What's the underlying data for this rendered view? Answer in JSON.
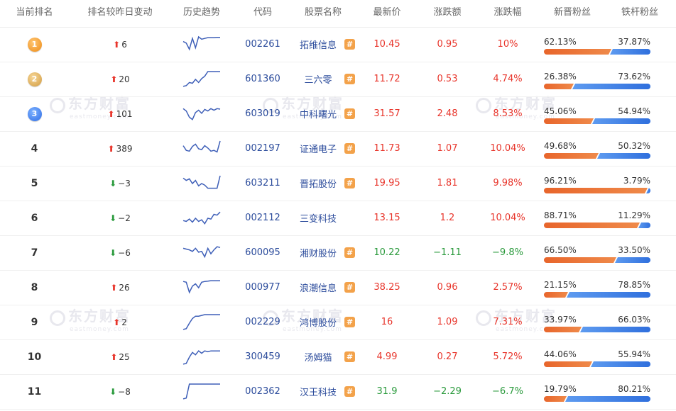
{
  "watermark": {
    "text": "东方财富",
    "sub": "eastmoney.com"
  },
  "header": {
    "rank": "当前排名",
    "rank_change": "排名较昨日变动",
    "trend": "历史趋势",
    "code": "代码",
    "name": "股票名称",
    "price": "最新价",
    "change_amt": "涨跌额",
    "change_pct": "涨跌幅",
    "new_fans": "新晋粉丝",
    "loyal_fans": "铁杆粉丝"
  },
  "colors": {
    "up": "#e8352b",
    "down": "#2a9a3c",
    "link": "#2c4c9c",
    "new_fans_bar": "#e8652b",
    "loyal_fans_bar": "#2f6fdd",
    "hash_icon": "#f3a24a"
  },
  "icons": {
    "rank_up": "arrow-up-icon",
    "rank_down": "arrow-down-icon",
    "stock_bar": "hash-icon"
  },
  "rows": [
    {
      "rank": "1",
      "medal": 1,
      "dir": "up",
      "rank_change": "6",
      "code": "002261",
      "name": "拓维信息",
      "price": "10.45",
      "change_amt": "0.95",
      "change_pct": "10%",
      "tone": "red",
      "new_fans": "62.13%",
      "loyal_fans": "37.87%",
      "new_ratio": 0.6213,
      "hash": true,
      "trend": [
        0.7,
        0.6,
        0.2,
        0.9,
        0.3,
        1.0,
        0.85,
        0.9,
        0.95,
        0.95,
        0.95,
        0.97,
        0.97
      ]
    },
    {
      "rank": "2",
      "medal": 2,
      "dir": "up",
      "rank_change": "20",
      "code": "601360",
      "name": "三六零",
      "price": "11.72",
      "change_amt": "0.53",
      "change_pct": "4.74%",
      "tone": "red",
      "new_fans": "26.38%",
      "loyal_fans": "73.62%",
      "new_ratio": 0.2638,
      "hash": true,
      "trend": [
        0.05,
        0.1,
        0.3,
        0.25,
        0.5,
        0.3,
        0.55,
        0.7,
        1.0,
        1.0,
        1.0,
        1.0,
        1.0
      ]
    },
    {
      "rank": "3",
      "medal": 3,
      "dir": "up",
      "rank_change": "101",
      "code": "603019",
      "name": "中科曙光",
      "price": "31.57",
      "change_amt": "2.48",
      "change_pct": "8.53%",
      "tone": "red",
      "new_fans": "45.06%",
      "loyal_fans": "54.94%",
      "new_ratio": 0.4506,
      "hash": true,
      "trend": [
        0.85,
        0.7,
        0.3,
        0.15,
        0.6,
        0.75,
        0.55,
        0.8,
        0.7,
        0.85,
        0.75,
        0.85,
        0.82
      ]
    },
    {
      "rank": "4",
      "medal": 0,
      "dir": "up",
      "rank_change": "389",
      "code": "002197",
      "name": "证通电子",
      "price": "11.73",
      "change_amt": "1.07",
      "change_pct": "10.04%",
      "tone": "red",
      "new_fans": "49.68%",
      "loyal_fans": "50.32%",
      "new_ratio": 0.4968,
      "hash": true,
      "trend": [
        0.7,
        0.4,
        0.35,
        0.65,
        0.8,
        0.5,
        0.45,
        0.7,
        0.55,
        0.35,
        0.4,
        0.3,
        1.0
      ]
    },
    {
      "rank": "5",
      "medal": 0,
      "dir": "down",
      "rank_change": "−3",
      "code": "603211",
      "name": "晋拓股份",
      "price": "19.95",
      "change_amt": "1.81",
      "change_pct": "9.98%",
      "tone": "red",
      "new_fans": "96.21%",
      "loyal_fans": "3.79%",
      "new_ratio": 0.9621,
      "hash": true,
      "trend": [
        0.85,
        0.7,
        0.8,
        0.5,
        0.7,
        0.35,
        0.5,
        0.4,
        0.2,
        0.2,
        0.2,
        0.2,
        1.0
      ]
    },
    {
      "rank": "6",
      "medal": 0,
      "dir": "down",
      "rank_change": "−2",
      "code": "002112",
      "name": "三变科技",
      "price": "13.15",
      "change_amt": "1.2",
      "change_pct": "10.04%",
      "tone": "red",
      "new_fans": "88.71%",
      "loyal_fans": "11.29%",
      "new_ratio": 0.8871,
      "hash": false,
      "trend": [
        0.35,
        0.3,
        0.45,
        0.25,
        0.5,
        0.3,
        0.4,
        0.15,
        0.5,
        0.45,
        0.75,
        0.7,
        0.9
      ]
    },
    {
      "rank": "7",
      "medal": 0,
      "dir": "down",
      "rank_change": "−6",
      "code": "600095",
      "name": "湘财股份",
      "price": "10.22",
      "change_amt": "−1.11",
      "change_pct": "−9.8%",
      "tone": "green",
      "new_fans": "66.50%",
      "loyal_fans": "33.50%",
      "new_ratio": 0.665,
      "hash": true,
      "trend": [
        0.8,
        0.75,
        0.7,
        0.6,
        0.8,
        0.55,
        0.6,
        0.25,
        0.8,
        0.45,
        0.7,
        0.9,
        0.85
      ]
    },
    {
      "rank": "8",
      "medal": 0,
      "dir": "up",
      "rank_change": "26",
      "code": "000977",
      "name": "浪潮信息",
      "price": "38.25",
      "change_amt": "0.96",
      "change_pct": "2.57%",
      "tone": "red",
      "new_fans": "21.15%",
      "loyal_fans": "78.85%",
      "new_ratio": 0.2115,
      "hash": true,
      "trend": [
        0.9,
        0.85,
        0.2,
        0.6,
        0.75,
        0.5,
        0.85,
        0.9,
        0.92,
        0.95,
        0.95,
        0.95,
        0.95
      ]
    },
    {
      "rank": "9",
      "medal": 0,
      "dir": "up",
      "rank_change": "2",
      "code": "002229",
      "name": "鸿博股份",
      "price": "16",
      "change_amt": "1.09",
      "change_pct": "7.31%",
      "tone": "red",
      "new_fans": "33.97%",
      "loyal_fans": "66.03%",
      "new_ratio": 0.3397,
      "hash": true,
      "trend": [
        0.05,
        0.1,
        0.45,
        0.75,
        0.9,
        0.9,
        0.95,
        1.0,
        1.0,
        1.0,
        1.0,
        1.0,
        1.0
      ]
    },
    {
      "rank": "10",
      "medal": 0,
      "dir": "up",
      "rank_change": "25",
      "code": "300459",
      "name": "汤姆猫",
      "price": "4.99",
      "change_amt": "0.27",
      "change_pct": "5.72%",
      "tone": "red",
      "new_fans": "44.06%",
      "loyal_fans": "55.94%",
      "new_ratio": 0.4406,
      "hash": true,
      "trend": [
        0.05,
        0.1,
        0.5,
        0.8,
        0.65,
        0.9,
        0.75,
        0.9,
        0.85,
        0.9,
        0.9,
        0.9,
        0.9
      ]
    },
    {
      "rank": "11",
      "medal": 0,
      "dir": "down",
      "rank_change": "−8",
      "code": "002362",
      "name": "汉王科技",
      "price": "31.9",
      "change_amt": "−2.29",
      "change_pct": "−6.7%",
      "tone": "green",
      "new_fans": "19.79%",
      "loyal_fans": "80.21%",
      "new_ratio": 0.1979,
      "hash": true,
      "trend": [
        0.05,
        0.1,
        1.0,
        1.0,
        1.0,
        1.0,
        1.0,
        1.0,
        1.0,
        1.0,
        1.0,
        1.0,
        1.0
      ]
    }
  ]
}
